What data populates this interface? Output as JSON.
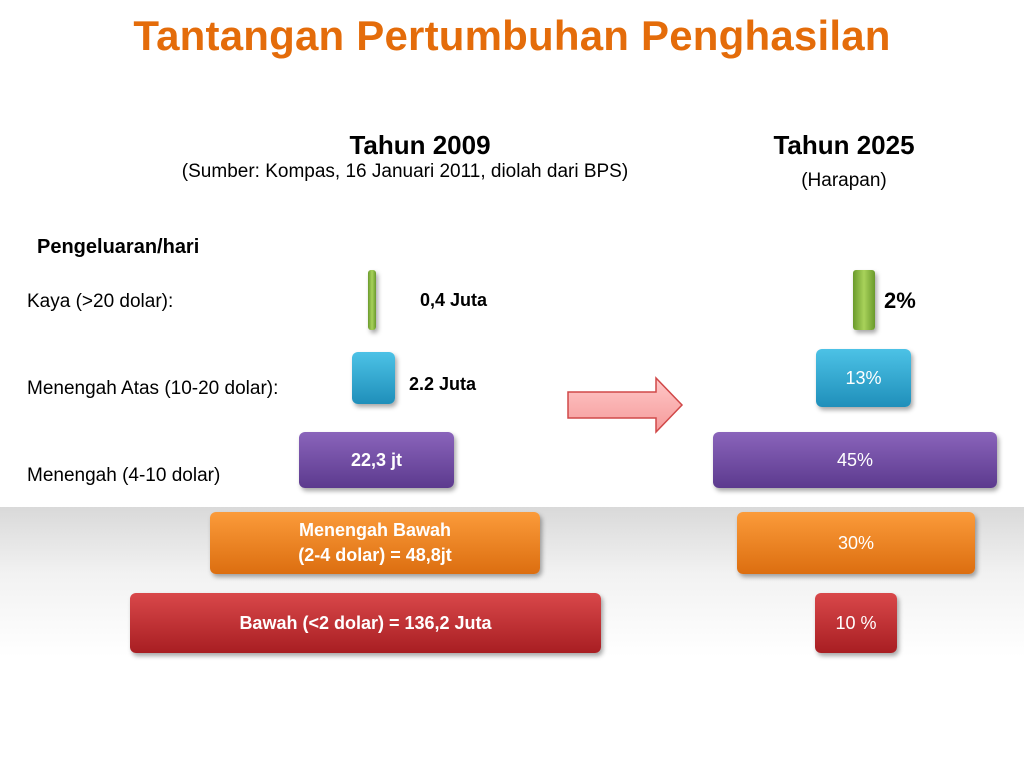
{
  "title": "Tantangan Pertumbuhan Penghasilan",
  "col_2009": {
    "heading": "Tahun 2009",
    "source": "(Sumber: Kompas, 16 Januari 2011, diolah dari BPS)"
  },
  "col_2025": {
    "heading": "Tahun 2025",
    "subtitle": "(Harapan)"
  },
  "row_header": "Pengeluaran/hari",
  "rows": [
    {
      "label": "Kaya (>20 dolar):",
      "value_2009": "0,4 Juta",
      "value_2025": "2%",
      "color": "#8fc042"
    },
    {
      "label": "Menengah Atas (10-20 dolar):",
      "value_2009": "2.2 Juta",
      "value_2025": "13%",
      "color": "#31a9d3"
    },
    {
      "label": "Menengah (4-10 dolar)",
      "value_2009": "22,3 jt",
      "value_2025": "45%",
      "color": "#7050a8"
    },
    {
      "label_line1": "Menengah Bawah",
      "label_line2": "(2-4 dolar) = 48,8jt",
      "value_2025": "30%",
      "color": "#f08526"
    },
    {
      "label": "Bawah (<2 dolar) = 136,2 Juta",
      "value_2025": "10 %",
      "color": "#c03034"
    }
  ],
  "arrow_icon": "right-arrow-icon"
}
